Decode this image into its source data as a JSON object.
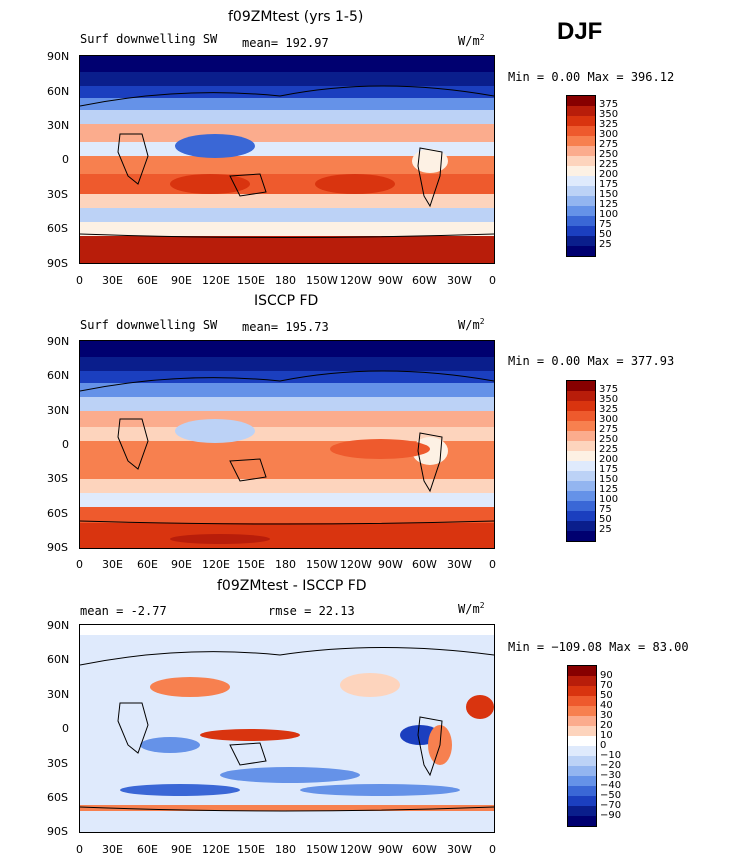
{
  "season": "DJF",
  "lat_labels": [
    "90N",
    "60N",
    "30N",
    "0",
    "30S",
    "60S",
    "90S"
  ],
  "lon_labels": [
    "0",
    "30E",
    "60E",
    "90E",
    "120E",
    "150E",
    "180",
    "150W",
    "120W",
    "90W",
    "60W",
    "30W",
    "0"
  ],
  "units": "W/m",
  "units_exp": "2",
  "panels": [
    {
      "title": "f09ZMtest (yrs 1-5)",
      "left_label": "Surf downwelling SW",
      "stat_label": "mean= 192.97",
      "minmax": "Min =    0.00 Max = 396.12",
      "levels": [
        "375",
        "350",
        "325",
        "300",
        "275",
        "250",
        "225",
        "200",
        "175",
        "150",
        "125",
        "100",
        "75",
        "50",
        "25"
      ]
    },
    {
      "title": "ISCCP FD",
      "left_label": "Surf downwelling SW",
      "stat_label": "mean= 195.73",
      "minmax": "Min =    0.00 Max = 377.93",
      "levels": [
        "375",
        "350",
        "325",
        "300",
        "275",
        "250",
        "225",
        "200",
        "175",
        "150",
        "125",
        "100",
        "75",
        "50",
        "25"
      ]
    },
    {
      "title": "f09ZMtest - ISCCP FD",
      "left_label": "mean =   -2.77",
      "stat_label": "rmse =   22.13",
      "minmax": "Min = −109.08 Max =  83.00",
      "levels": [
        "90",
        "70",
        "50",
        "40",
        "30",
        "20",
        "10",
        "0",
        "−10",
        "−20",
        "−30",
        "−40",
        "−50",
        "−70",
        "−90"
      ]
    }
  ],
  "colors": {
    "abs_scale": [
      "#870000",
      "#b81d0a",
      "#d9340f",
      "#ee5a2d",
      "#f7804f",
      "#fbac8d",
      "#fdd4bd",
      "#fdf1e4",
      "#dfeafc",
      "#bcd2f6",
      "#93b5f0",
      "#6592e8",
      "#3a67d6",
      "#1b3fbf",
      "#0a1e8c",
      "#000070"
    ],
    "diff_scale": [
      "#870000",
      "#b81d0a",
      "#d9340f",
      "#ee5a2d",
      "#f7804f",
      "#fbac8d",
      "#fdd4bd",
      "#ffffff",
      "#dfeafc",
      "#bcd2f6",
      "#93b5f0",
      "#6592e8",
      "#3a67d6",
      "#1b3fbf",
      "#0a1e8c",
      "#000070"
    ]
  }
}
